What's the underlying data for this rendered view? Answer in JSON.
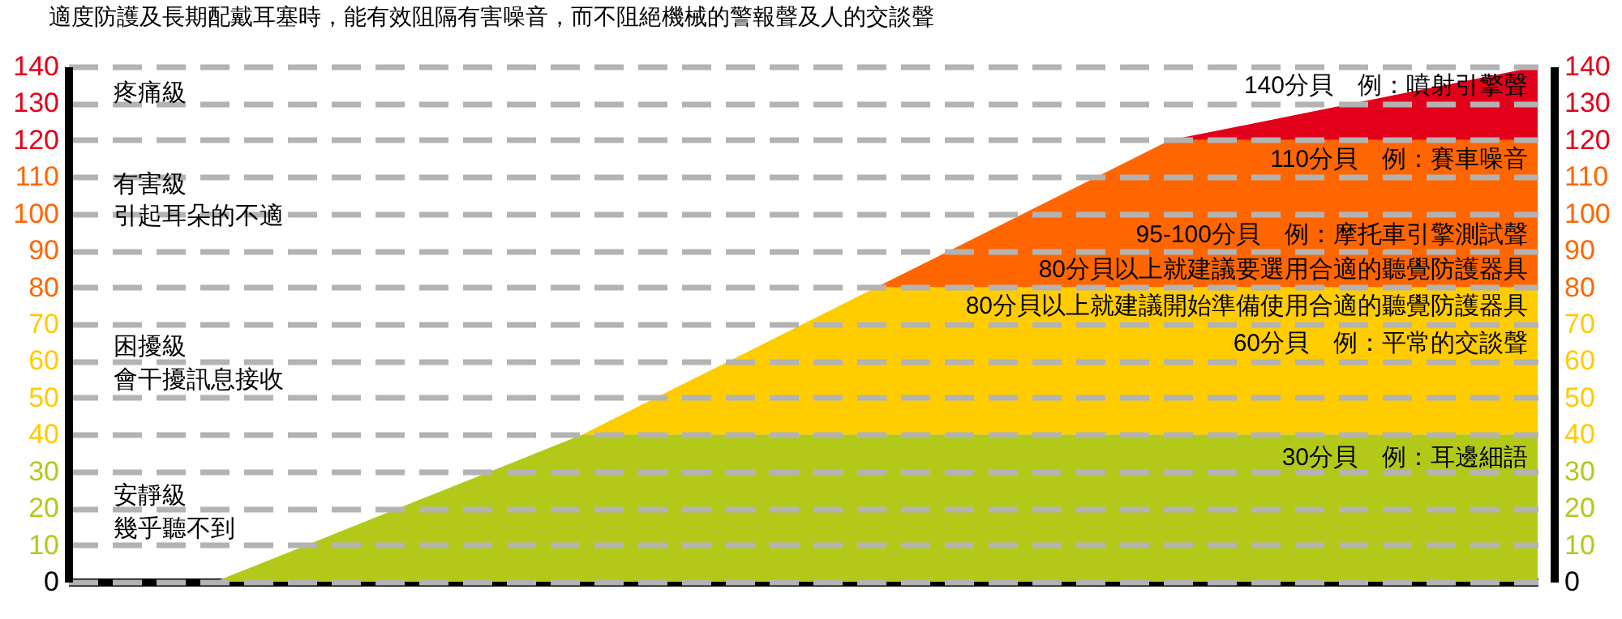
{
  "chart_data": {
    "type": "area",
    "stacked": true,
    "title": "適度防護及長期配戴耳塞時，能有效阻隔有害噪音，而不阻絕機械的警報聲及人的交談聲",
    "categories": [
      null,
      null,
      null,
      null,
      null,
      null,
      null,
      null,
      null,
      null,
      null,
      null,
      null,
      null,
      null,
      null,
      null,
      null,
      null,
      null,
      null
    ],
    "series": [
      {
        "color": "#b3c91a",
        "values": [
          0,
          0,
          0,
          8,
          16,
          24,
          32,
          40,
          40,
          40,
          40,
          40,
          40,
          40,
          40,
          40,
          40,
          40,
          40,
          40,
          40
        ]
      },
      {
        "color": "#ffcc00",
        "values": [
          0,
          0,
          0,
          0,
          0,
          0,
          0,
          0,
          10,
          20,
          30,
          40,
          40,
          40,
          40,
          40,
          40,
          40,
          40,
          40,
          40
        ]
      },
      {
        "color": "#ff6600",
        "values": [
          0,
          0,
          0,
          0,
          0,
          0,
          0,
          0,
          0,
          0,
          0,
          0,
          10,
          20,
          30,
          40,
          40,
          40,
          40,
          40,
          40
        ]
      },
      {
        "color": "#e3001b",
        "values": [
          0,
          0,
          0,
          0,
          0,
          0,
          0,
          0,
          0,
          0,
          0,
          0,
          0,
          0,
          0,
          0,
          4,
          8,
          12,
          16,
          20
        ]
      }
    ],
    "ylim": [
      0,
      140
    ],
    "yticks": [
      0,
      10,
      20,
      30,
      40,
      50,
      60,
      70,
      80,
      90,
      100,
      110,
      120,
      130,
      140
    ],
    "y2lim": [
      0,
      140
    ],
    "y2ticks": [
      0,
      10,
      20,
      30,
      40,
      50,
      60,
      70,
      80,
      90,
      100,
      110,
      120,
      130,
      140
    ],
    "grid": "y",
    "legend": false,
    "line_style": "dashed",
    "annotations": [
      "疼痛級",
      "有害級",
      "引起耳朵的不適",
      "困擾級",
      "會干擾訊息接收",
      "安靜級",
      "幾乎聽不到",
      "140分貝　例：噴射引擎聲",
      "110分貝　例：賽車噪音",
      "95-100分貝　例：摩托車引擎測試聲",
      "80分貝以上就建議要選用合適的聽覺防護器具",
      "80分貝以上就建議開始準備使用合適的聽覺防護器具",
      "60分貝　例：平常的交談聲",
      "30分貝　例：耳邊細語"
    ]
  }
}
